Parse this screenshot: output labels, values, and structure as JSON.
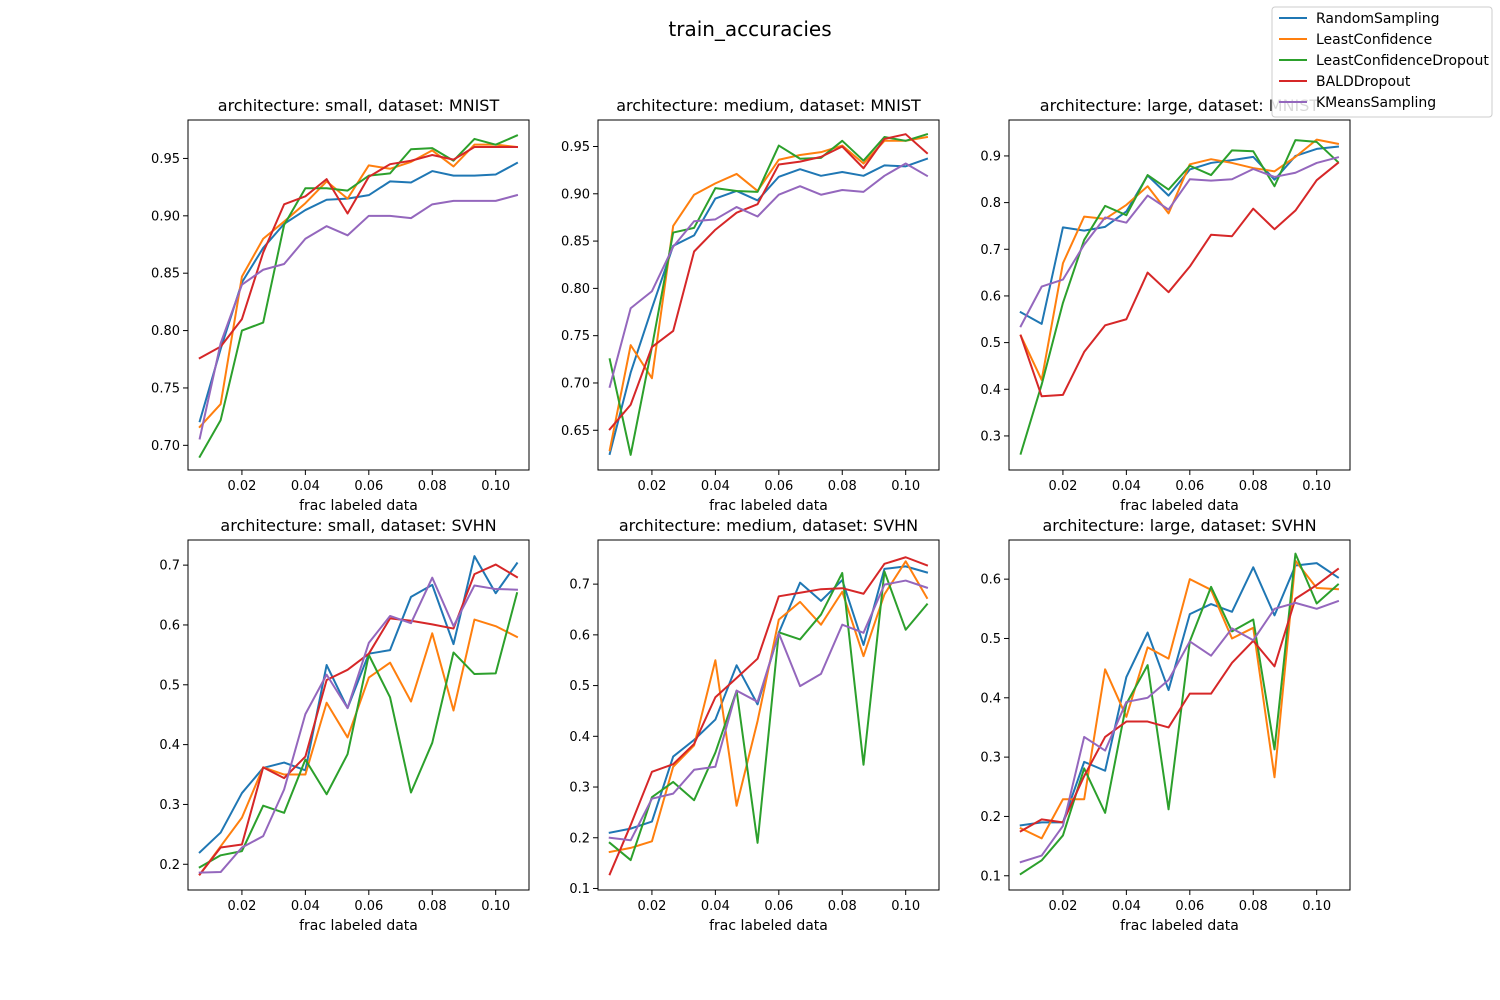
{
  "figure": {
    "title": "train_accuracies"
  },
  "legend": {
    "placement": "top-right",
    "entries": [
      {
        "name": "RandomSampling",
        "color": "#1f77b4"
      },
      {
        "name": "LeastConfidence",
        "color": "#ff7f0e"
      },
      {
        "name": "LeastConfidenceDropout",
        "color": "#2ca02c"
      },
      {
        "name": "BALDDropout",
        "color": "#d62728"
      },
      {
        "name": "KMeansSampling",
        "color": "#9467bd"
      }
    ]
  },
  "chart_data": [
    {
      "type": "line",
      "title": "architecture: small, dataset: MNIST",
      "xlabel": "frac labeled data",
      "xlim": [
        0.003,
        0.1105
      ],
      "ylim": [
        0.6785,
        0.9835
      ],
      "xticks": [
        0.02,
        0.04,
        0.06,
        0.08,
        0.1
      ],
      "xtick_labels": [
        "0.02",
        "0.04",
        "0.06",
        "0.08",
        "0.10"
      ],
      "yticks": [
        0.7,
        0.75,
        0.8,
        0.85,
        0.9,
        0.95
      ],
      "ytick_labels": [
        "0.70",
        "0.75",
        "0.80",
        "0.85",
        "0.90",
        "0.95"
      ],
      "x": [
        0.0067,
        0.0133,
        0.02,
        0.0267,
        0.0333,
        0.04,
        0.0467,
        0.0533,
        0.06,
        0.0667,
        0.0733,
        0.08,
        0.0867,
        0.0933,
        0.1,
        0.1067
      ],
      "series": [
        {
          "name": "RandomSampling",
          "values": [
            0.721,
            0.784,
            0.842,
            0.872,
            0.893,
            0.905,
            0.914,
            0.915,
            0.918,
            0.93,
            0.929,
            0.939,
            0.935,
            0.935,
            0.936,
            0.946
          ]
        },
        {
          "name": "LeastConfidence",
          "values": [
            0.716,
            0.736,
            0.847,
            0.88,
            0.895,
            0.911,
            0.93,
            0.915,
            0.944,
            0.941,
            0.947,
            0.957,
            0.943,
            0.962,
            0.962,
            0.96
          ]
        },
        {
          "name": "LeastConfidenceDropout",
          "values": [
            0.69,
            0.722,
            0.8,
            0.807,
            0.892,
            0.924,
            0.924,
            0.922,
            0.935,
            0.937,
            0.958,
            0.959,
            0.948,
            0.967,
            0.962,
            0.97
          ]
        },
        {
          "name": "BALDDropout",
          "values": [
            0.776,
            0.786,
            0.81,
            0.868,
            0.91,
            0.917,
            0.932,
            0.902,
            0.934,
            0.945,
            0.948,
            0.953,
            0.949,
            0.96,
            0.96,
            0.96
          ]
        },
        {
          "name": "KMeansSampling",
          "values": [
            0.706,
            0.789,
            0.84,
            0.853,
            0.858,
            0.88,
            0.891,
            0.883,
            0.9,
            0.9,
            0.898,
            0.91,
            0.913,
            0.913,
            0.913,
            0.918
          ]
        }
      ]
    },
    {
      "type": "line",
      "title": "architecture: medium, dataset: MNIST",
      "xlabel": "frac labeled data",
      "xlim": [
        0.003,
        0.1105
      ],
      "ylim": [
        0.608,
        0.978
      ],
      "xticks": [
        0.02,
        0.04,
        0.06,
        0.08,
        0.1
      ],
      "xtick_labels": [
        "0.02",
        "0.04",
        "0.06",
        "0.08",
        "0.10"
      ],
      "yticks": [
        0.65,
        0.7,
        0.75,
        0.8,
        0.85,
        0.9,
        0.95
      ],
      "ytick_labels": [
        "0.65",
        "0.70",
        "0.75",
        "0.80",
        "0.85",
        "0.90",
        "0.95"
      ],
      "x": [
        0.0067,
        0.0133,
        0.02,
        0.0267,
        0.0333,
        0.04,
        0.0467,
        0.0533,
        0.06,
        0.0667,
        0.0733,
        0.08,
        0.0867,
        0.0933,
        0.1,
        0.1067
      ],
      "series": [
        {
          "name": "RandomSampling",
          "values": [
            0.625,
            0.711,
            0.779,
            0.845,
            0.856,
            0.895,
            0.903,
            0.893,
            0.918,
            0.926,
            0.919,
            0.923,
            0.919,
            0.93,
            0.929,
            0.937
          ]
        },
        {
          "name": "LeastConfidence",
          "values": [
            0.629,
            0.74,
            0.705,
            0.866,
            0.899,
            0.911,
            0.921,
            0.903,
            0.936,
            0.941,
            0.944,
            0.951,
            0.932,
            0.956,
            0.956,
            0.96
          ]
        },
        {
          "name": "LeastConfidenceDropout",
          "values": [
            0.725,
            0.624,
            0.738,
            0.859,
            0.864,
            0.906,
            0.903,
            0.902,
            0.951,
            0.937,
            0.938,
            0.956,
            0.935,
            0.96,
            0.956,
            0.963
          ]
        },
        {
          "name": "BALDDropout",
          "values": [
            0.651,
            0.677,
            0.738,
            0.755,
            0.839,
            0.862,
            0.88,
            0.889,
            0.931,
            0.934,
            0.939,
            0.95,
            0.927,
            0.958,
            0.963,
            0.943
          ]
        },
        {
          "name": "KMeansSampling",
          "values": [
            0.696,
            0.779,
            0.797,
            0.844,
            0.871,
            0.873,
            0.886,
            0.876,
            0.899,
            0.908,
            0.899,
            0.904,
            0.902,
            0.919,
            0.932,
            0.919
          ]
        }
      ]
    },
    {
      "type": "line",
      "title": "architecture: large, dataset: MNIST",
      "xlabel": "frac labeled data",
      "xlim": [
        0.003,
        0.1105
      ],
      "ylim": [
        0.227,
        0.977
      ],
      "xticks": [
        0.02,
        0.04,
        0.06,
        0.08,
        0.1
      ],
      "xtick_labels": [
        "0.02",
        "0.04",
        "0.06",
        "0.08",
        "0.10"
      ],
      "yticks": [
        0.3,
        0.4,
        0.5,
        0.6,
        0.7,
        0.8,
        0.9
      ],
      "ytick_labels": [
        "0.3",
        "0.4",
        "0.5",
        "0.6",
        "0.7",
        "0.8",
        "0.9"
      ],
      "x": [
        0.0067,
        0.0133,
        0.02,
        0.0267,
        0.0333,
        0.04,
        0.0467,
        0.0533,
        0.06,
        0.0667,
        0.0733,
        0.08,
        0.0867,
        0.0933,
        0.1,
        0.1067
      ],
      "series": [
        {
          "name": "RandomSampling",
          "values": [
            0.565,
            0.54,
            0.747,
            0.74,
            0.748,
            0.781,
            0.858,
            0.815,
            0.871,
            0.885,
            0.891,
            0.898,
            0.849,
            0.9,
            0.915,
            0.92
          ]
        },
        {
          "name": "LeastConfidence",
          "values": [
            0.515,
            0.42,
            0.67,
            0.77,
            0.765,
            0.795,
            0.835,
            0.777,
            0.882,
            0.893,
            0.885,
            0.874,
            0.867,
            0.898,
            0.935,
            0.926
          ]
        },
        {
          "name": "LeastConfidenceDropout",
          "values": [
            0.262,
            0.41,
            0.585,
            0.72,
            0.793,
            0.773,
            0.859,
            0.828,
            0.879,
            0.859,
            0.912,
            0.91,
            0.835,
            0.934,
            0.93,
            0.887
          ]
        },
        {
          "name": "BALDDropout",
          "values": [
            0.515,
            0.385,
            0.388,
            0.48,
            0.537,
            0.55,
            0.65,
            0.608,
            0.663,
            0.731,
            0.728,
            0.787,
            0.743,
            0.783,
            0.848,
            0.885
          ]
        },
        {
          "name": "KMeansSampling",
          "values": [
            0.535,
            0.62,
            0.635,
            0.71,
            0.768,
            0.757,
            0.815,
            0.785,
            0.85,
            0.847,
            0.85,
            0.872,
            0.855,
            0.864,
            0.885,
            0.897
          ]
        }
      ]
    },
    {
      "type": "line",
      "title": "architecture: small, dataset: SVHN",
      "xlabel": "frac labeled data",
      "xlim": [
        0.003,
        0.1105
      ],
      "ylim": [
        0.157,
        0.742
      ],
      "xticks": [
        0.02,
        0.04,
        0.06,
        0.08,
        0.1
      ],
      "xtick_labels": [
        "0.02",
        "0.04",
        "0.06",
        "0.08",
        "0.10"
      ],
      "yticks": [
        0.2,
        0.3,
        0.4,
        0.5,
        0.6,
        0.7
      ],
      "ytick_labels": [
        "0.2",
        "0.3",
        "0.4",
        "0.5",
        "0.6",
        "0.7"
      ],
      "x": [
        0.0067,
        0.0133,
        0.02,
        0.0267,
        0.0333,
        0.04,
        0.0467,
        0.0533,
        0.06,
        0.0667,
        0.0733,
        0.08,
        0.0867,
        0.0933,
        0.1,
        0.1067
      ],
      "series": [
        {
          "name": "RandomSampling",
          "values": [
            0.22,
            0.253,
            0.319,
            0.361,
            0.37,
            0.357,
            0.533,
            0.461,
            0.552,
            0.558,
            0.647,
            0.667,
            0.568,
            0.715,
            0.653,
            0.703
          ]
        },
        {
          "name": "LeastConfidence",
          "values": [
            0.183,
            0.23,
            0.278,
            0.362,
            0.35,
            0.35,
            0.47,
            0.412,
            0.512,
            0.537,
            0.472,
            0.586,
            0.457,
            0.609,
            0.598,
            0.58
          ]
        },
        {
          "name": "LeastConfidenceDropout",
          "values": [
            0.195,
            0.215,
            0.222,
            0.298,
            0.286,
            0.375,
            0.317,
            0.384,
            0.55,
            0.479,
            0.32,
            0.403,
            0.554,
            0.518,
            0.519,
            0.653
          ]
        },
        {
          "name": "BALDDropout",
          "values": [
            0.183,
            0.228,
            0.233,
            0.362,
            0.344,
            0.38,
            0.508,
            0.525,
            0.552,
            0.611,
            0.607,
            0.601,
            0.594,
            0.685,
            0.701,
            0.68
          ]
        },
        {
          "name": "KMeansSampling",
          "values": [
            0.186,
            0.187,
            0.228,
            0.247,
            0.325,
            0.451,
            0.517,
            0.461,
            0.57,
            0.615,
            0.603,
            0.679,
            0.598,
            0.666,
            0.66,
            0.659
          ]
        }
      ]
    },
    {
      "type": "line",
      "title": "architecture: medium, dataset: SVHN",
      "xlabel": "frac labeled data",
      "xlim": [
        0.003,
        0.1105
      ],
      "ylim": [
        0.097,
        0.787
      ],
      "xticks": [
        0.02,
        0.04,
        0.06,
        0.08,
        0.1
      ],
      "xtick_labels": [
        "0.02",
        "0.04",
        "0.06",
        "0.08",
        "0.10"
      ],
      "yticks": [
        0.1,
        0.2,
        0.3,
        0.4,
        0.5,
        0.6,
        0.7
      ],
      "ytick_labels": [
        "0.1",
        "0.2",
        "0.3",
        "0.4",
        "0.5",
        "0.6",
        "0.7"
      ],
      "x": [
        0.0067,
        0.0133,
        0.02,
        0.0267,
        0.0333,
        0.04,
        0.0467,
        0.0533,
        0.06,
        0.0667,
        0.0733,
        0.08,
        0.0867,
        0.0933,
        0.1,
        0.1067
      ],
      "series": [
        {
          "name": "RandomSampling",
          "values": [
            0.21,
            0.218,
            0.232,
            0.36,
            0.393,
            0.433,
            0.54,
            0.463,
            0.604,
            0.703,
            0.667,
            0.708,
            0.58,
            0.73,
            0.735,
            0.723
          ]
        },
        {
          "name": "LeastConfidence",
          "values": [
            0.172,
            0.18,
            0.193,
            0.34,
            0.382,
            0.55,
            0.263,
            0.43,
            0.63,
            0.665,
            0.62,
            0.685,
            0.558,
            0.68,
            0.745,
            0.673
          ]
        },
        {
          "name": "LeastConfidenceDropout",
          "values": [
            0.19,
            0.156,
            0.28,
            0.31,
            0.274,
            0.368,
            0.49,
            0.19,
            0.605,
            0.591,
            0.64,
            0.722,
            0.344,
            0.725,
            0.61,
            0.66
          ]
        },
        {
          "name": "BALDDropout",
          "values": [
            0.128,
            0.225,
            0.33,
            0.345,
            0.385,
            0.477,
            0.515,
            0.553,
            0.676,
            0.683,
            0.69,
            0.692,
            0.681,
            0.74,
            0.753,
            0.737
          ]
        },
        {
          "name": "KMeansSampling",
          "values": [
            0.2,
            0.195,
            0.277,
            0.287,
            0.334,
            0.34,
            0.49,
            0.468,
            0.603,
            0.499,
            0.523,
            0.62,
            0.604,
            0.699,
            0.707,
            0.693
          ]
        }
      ]
    },
    {
      "type": "line",
      "title": "architecture: large, dataset: SVHN",
      "xlabel": "frac labeled data",
      "xlim": [
        0.003,
        0.1105
      ],
      "ylim": [
        0.076,
        0.666
      ],
      "xticks": [
        0.02,
        0.04,
        0.06,
        0.08,
        0.1
      ],
      "xtick_labels": [
        "0.02",
        "0.04",
        "0.06",
        "0.08",
        "0.10"
      ],
      "yticks": [
        0.1,
        0.2,
        0.3,
        0.4,
        0.5,
        0.6
      ],
      "ytick_labels": [
        "0.1",
        "0.2",
        "0.3",
        "0.4",
        "0.5",
        "0.6"
      ],
      "x": [
        0.0067,
        0.0133,
        0.02,
        0.0267,
        0.0333,
        0.04,
        0.0467,
        0.0533,
        0.06,
        0.0667,
        0.0733,
        0.08,
        0.0867,
        0.0933,
        0.1,
        0.1067
      ],
      "series": [
        {
          "name": "RandomSampling",
          "values": [
            0.185,
            0.19,
            0.19,
            0.292,
            0.277,
            0.435,
            0.51,
            0.413,
            0.541,
            0.558,
            0.545,
            0.62,
            0.539,
            0.623,
            0.627,
            0.603
          ]
        },
        {
          "name": "LeastConfidence",
          "values": [
            0.18,
            0.163,
            0.229,
            0.229,
            0.448,
            0.368,
            0.485,
            0.466,
            0.6,
            0.582,
            0.5,
            0.518,
            0.266,
            0.631,
            0.585,
            0.583
          ]
        },
        {
          "name": "LeastConfidenceDropout",
          "values": [
            0.103,
            0.126,
            0.168,
            0.281,
            0.206,
            0.39,
            0.455,
            0.212,
            0.495,
            0.587,
            0.512,
            0.532,
            0.313,
            0.643,
            0.559,
            0.591
          ]
        },
        {
          "name": "BALDDropout",
          "values": [
            0.175,
            0.195,
            0.19,
            0.268,
            0.334,
            0.36,
            0.36,
            0.35,
            0.407,
            0.407,
            0.459,
            0.496,
            0.453,
            0.567,
            0.59,
            0.617
          ]
        },
        {
          "name": "KMeansSampling",
          "values": [
            0.123,
            0.134,
            0.184,
            0.334,
            0.311,
            0.393,
            0.4,
            0.43,
            0.495,
            0.471,
            0.517,
            0.497,
            0.55,
            0.56,
            0.55,
            0.563
          ]
        }
      ]
    }
  ]
}
